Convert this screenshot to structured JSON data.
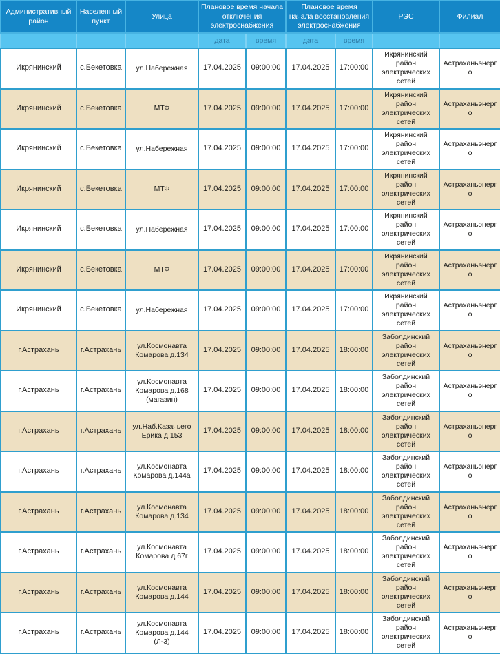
{
  "colors": {
    "header_bg": "#1587c7",
    "header_border": "#47b3e2",
    "subheader_bg": "#56c4f0",
    "subheader_text": "#2d7aa6",
    "body_border": "#2f9fce",
    "row_alt_bg": "#eee0c2",
    "text": "#1e1e1c"
  },
  "table": {
    "headers": {
      "admin_district": "Административный район",
      "settlement": "Населенный пункт",
      "street": "Улица",
      "outage_start": "Плановое время начала отключения электроснабжения",
      "restore_start": "Плановое время начала восстановления электроснабжения",
      "res": "РЭС",
      "branch": "Филиал"
    },
    "subheaders": {
      "date": "дата",
      "time": "время"
    },
    "rows": [
      [
        "Икрянинский",
        "с.Бекетовка",
        "ул.Набережная",
        "17.04.2025",
        "09:00:00",
        "17.04.2025",
        "17:00:00",
        "Икрянинский район электрических сетей",
        "Астраханьэнерго"
      ],
      [
        "Икрянинский",
        "с.Бекетовка",
        "МТФ",
        "17.04.2025",
        "09:00:00",
        "17.04.2025",
        "17:00:00",
        "Икрянинский район электрических сетей",
        "Астраханьэнерго"
      ],
      [
        "Икрянинский",
        "с.Бекетовка",
        "ул.Набережная",
        "17.04.2025",
        "09:00:00",
        "17.04.2025",
        "17:00:00",
        "Икрянинский район электрических сетей",
        "Астраханьэнерго"
      ],
      [
        "Икрянинский",
        "с.Бекетовка",
        "МТФ",
        "17.04.2025",
        "09:00:00",
        "17.04.2025",
        "17:00:00",
        "Икрянинский район электрических сетей",
        "Астраханьэнерго"
      ],
      [
        "Икрянинский",
        "с.Бекетовка",
        "ул.Набережная",
        "17.04.2025",
        "09:00:00",
        "17.04.2025",
        "17:00:00",
        "Икрянинский район электрических сетей",
        "Астраханьэнерго"
      ],
      [
        "Икрянинский",
        "с.Бекетовка",
        "МТФ",
        "17.04.2025",
        "09:00:00",
        "17.04.2025",
        "17:00:00",
        "Икрянинский район электрических сетей",
        "Астраханьэнерго"
      ],
      [
        "Икрянинский",
        "с.Бекетовка",
        "ул.Набережная",
        "17.04.2025",
        "09:00:00",
        "17.04.2025",
        "17:00:00",
        "Икрянинский район электрических сетей",
        "Астраханьэнерго"
      ],
      [
        "г.Астрахань",
        "г.Астрахань",
        "ул.Космонавта Комарова д.134",
        "17.04.2025",
        "09:00:00",
        "17.04.2025",
        "18:00:00",
        "Заболдинский район электрических сетей",
        "Астраханьэнерго"
      ],
      [
        "г.Астрахань",
        "г.Астрахань",
        "ул.Космонавта Комарова д.168 (магазин)",
        "17.04.2025",
        "09:00:00",
        "17.04.2025",
        "18:00:00",
        "Заболдинский район электрических сетей",
        "Астраханьэнерго"
      ],
      [
        "г.Астрахань",
        "г.Астрахань",
        "ул.Наб.Казачьего Ерика д.153",
        "17.04.2025",
        "09:00:00",
        "17.04.2025",
        "18:00:00",
        "Заболдинский район электрических сетей",
        "Астраханьэнерго"
      ],
      [
        "г.Астрахань",
        "г.Астрахань",
        "ул.Космонавта Комарова д.144а",
        "17.04.2025",
        "09:00:00",
        "17.04.2025",
        "18:00:00",
        "Заболдинский район электрических сетей",
        "Астраханьэнерго"
      ],
      [
        "г.Астрахань",
        "г.Астрахань",
        "ул.Космонавта Комарова д.134",
        "17.04.2025",
        "09:00:00",
        "17.04.2025",
        "18:00:00",
        "Заболдинский район электрических сетей",
        "Астраханьэнерго"
      ],
      [
        "г.Астрахань",
        "г.Астрахань",
        "ул.Космонавта Комарова д.67г",
        "17.04.2025",
        "09:00:00",
        "17.04.2025",
        "18:00:00",
        "Заболдинский район электрических сетей",
        "Астраханьэнерго"
      ],
      [
        "г.Астрахань",
        "г.Астрахань",
        "ул.Космонавта Комарова д.144",
        "17.04.2025",
        "09:00:00",
        "17.04.2025",
        "18:00:00",
        "Заболдинский район электрических сетей",
        "Астраханьэнерго"
      ],
      [
        "г.Астрахань",
        "г.Астрахань",
        "ул.Космонавта Комарова д.144 (Л-3)",
        "17.04.2025",
        "09:00:00",
        "17.04.2025",
        "18:00:00",
        "Заболдинский район электрических сетей",
        "Астраханьэнерго"
      ]
    ]
  }
}
